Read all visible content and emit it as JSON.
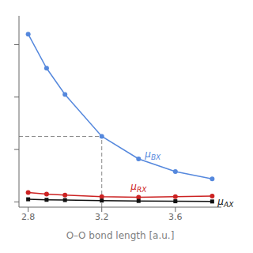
{
  "chart_data": {
    "type": "line",
    "xlabel": "O–O bond length [a.u.]",
    "x": [
      2.8,
      2.9,
      3.0,
      3.2,
      3.4,
      3.6,
      3.8
    ],
    "series": [
      {
        "name": "μBX",
        "color": "#5588dd",
        "marker": "circle",
        "values": [
          3.2,
          2.55,
          2.05,
          1.25,
          0.82,
          0.58,
          0.44
        ]
      },
      {
        "name": "μRX",
        "color": "#cc2222",
        "marker": "circle",
        "values": [
          0.18,
          0.15,
          0.13,
          0.1,
          0.09,
          0.1,
          0.11
        ]
      },
      {
        "name": "μAX",
        "color": "#111111",
        "marker": "square",
        "values": [
          0.05,
          0.04,
          0.035,
          0.025,
          0.018,
          0.012,
          0.008
        ]
      }
    ],
    "xlim": [
      2.75,
      3.85
    ],
    "ylim": [
      -0.1,
      3.55
    ],
    "xticks": [
      2.8,
      3.2,
      3.6
    ],
    "yticks": [
      0,
      1,
      2,
      3
    ],
    "tick_labels": "x",
    "grid": false,
    "reference_point": {
      "x": 3.2,
      "y": 1.25,
      "color": "#888888",
      "line_style": "dashed"
    }
  }
}
